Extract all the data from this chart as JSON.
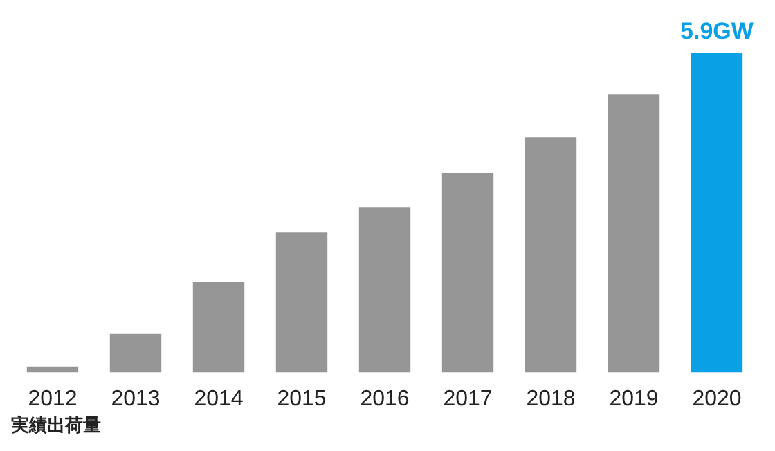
{
  "chart_data": {
    "type": "bar",
    "xlabel": "実績出荷量",
    "categories": [
      "2012",
      "2013",
      "2014",
      "2015",
      "2016",
      "2017",
      "2018",
      "2019",
      "2020"
    ],
    "tick_labels": "x",
    "values": [
      0.11,
      0.71,
      1.67,
      2.58,
      3.05,
      3.68,
      4.34,
      5.13,
      5.9
    ],
    "colors": [
      "#969696",
      "#969696",
      "#969696",
      "#969696",
      "#969696",
      "#969696",
      "#969696",
      "#969696",
      "#0aa0e6"
    ],
    "value_labels": [
      null,
      null,
      null,
      null,
      null,
      null,
      null,
      null,
      "5.9GW"
    ]
  }
}
